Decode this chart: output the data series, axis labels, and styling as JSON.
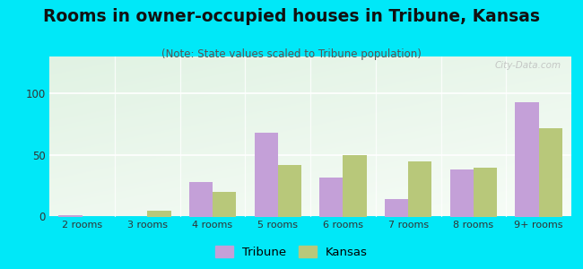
{
  "categories": [
    "2 rooms",
    "3 rooms",
    "4 rooms",
    "5 rooms",
    "6 rooms",
    "7 rooms",
    "8 rooms",
    "9+ rooms"
  ],
  "tribune_values": [
    1,
    0,
    28,
    68,
    32,
    14,
    38,
    93
  ],
  "kansas_values": [
    0,
    5,
    20,
    42,
    50,
    45,
    40,
    72
  ],
  "tribune_color": "#c4a0d8",
  "kansas_color": "#b8c87a",
  "title": "Rooms in owner-occupied houses in Tribune, Kansas",
  "subtitle": "(Note: State values scaled to Tribune population)",
  "ylim": [
    0,
    130
  ],
  "yticks": [
    0,
    50,
    100
  ],
  "background_outer": "#00e8f8",
  "title_fontsize": 13.5,
  "subtitle_fontsize": 8.5,
  "bar_width": 0.36,
  "legend_tribune": "Tribune",
  "legend_kansas": "Kansas",
  "watermark": "City-Data.com"
}
